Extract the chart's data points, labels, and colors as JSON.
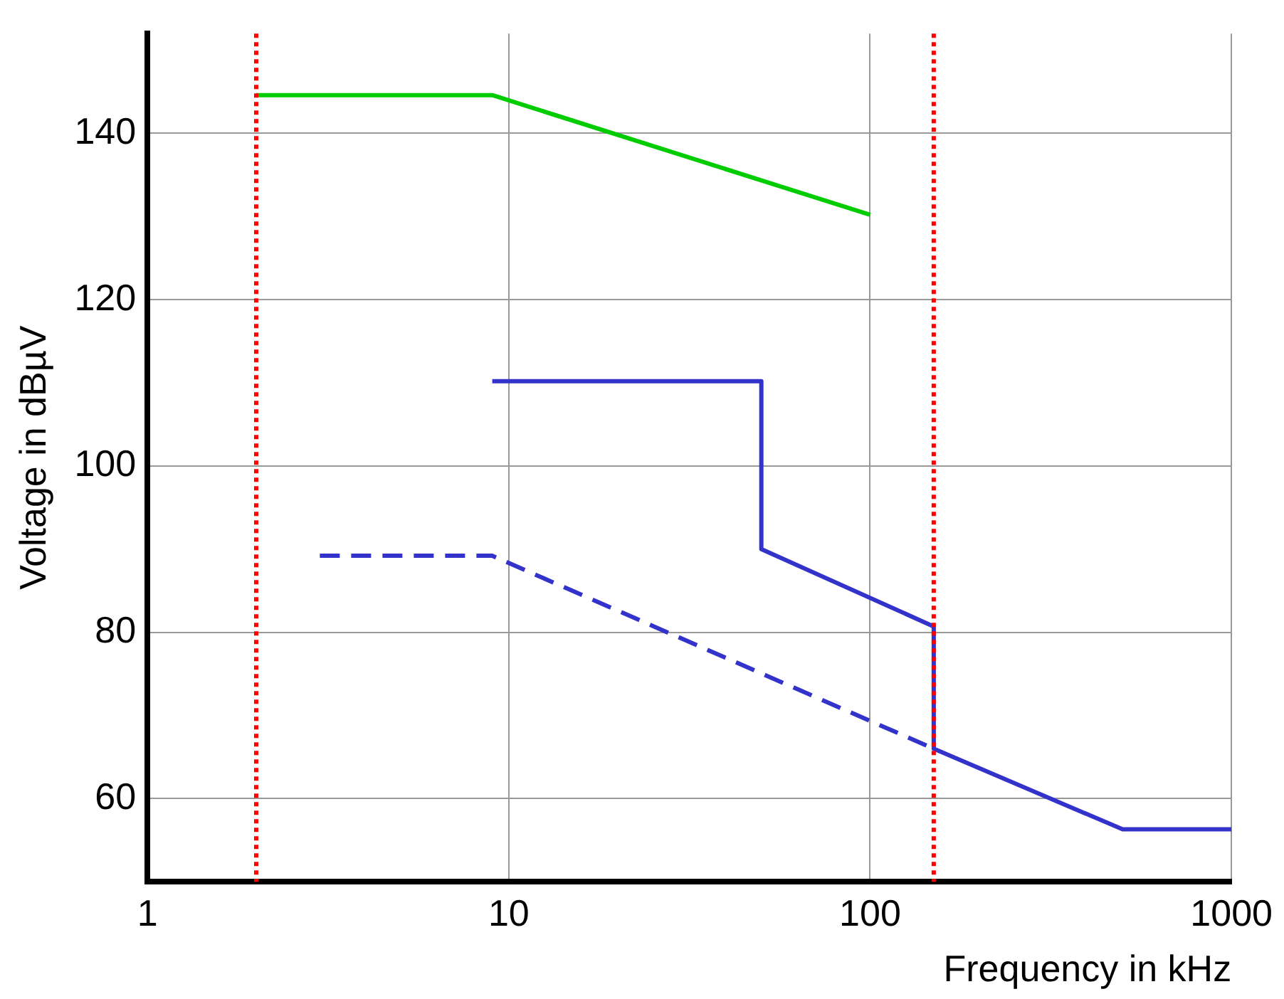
{
  "chart_data": {
    "type": "line",
    "xlabel": "Frequency in kHz",
    "ylabel": "Voltage in dBµV",
    "log": "x",
    "xlim": [
      1,
      1000
    ],
    "xticks": [
      1,
      10,
      100,
      1000
    ],
    "ylim": [
      50,
      152
    ],
    "yticks": [
      60,
      80,
      100,
      120,
      140
    ],
    "grid": true,
    "legend": false,
    "marker": "none",
    "series": [
      {
        "color": "#00cc00",
        "line_style": "solid",
        "x": [
          2,
          9,
          100
        ],
        "values": [
          144.6,
          144.6,
          130.2
        ]
      },
      {
        "color": "#3333cc",
        "line_style": "solid",
        "x": [
          9,
          50,
          50,
          150,
          150,
          500,
          1000
        ],
        "values": [
          110.2,
          110.2,
          90,
          80.7,
          66,
          56.3,
          56.3
        ]
      },
      {
        "color": "#3333cc",
        "line_style": "dashed",
        "x": [
          3,
          9,
          150
        ],
        "values": [
          89.2,
          89.2,
          66
        ]
      }
    ],
    "ref_lines": [
      {
        "axis": "x",
        "value": 2,
        "color": "#ff0000",
        "line_style": "dotted"
      },
      {
        "axis": "x",
        "value": 150,
        "color": "#ff0000",
        "line_style": "dotted"
      }
    ]
  }
}
